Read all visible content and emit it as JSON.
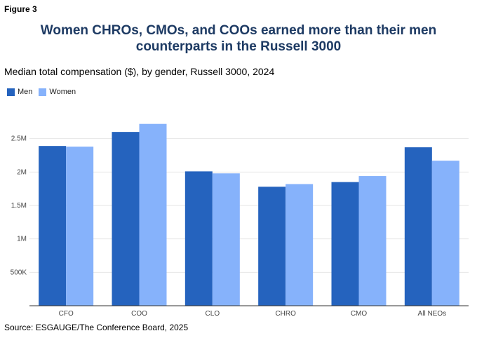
{
  "figure_label": "Figure 3",
  "title_line1": "Women CHROs, CMOs, and COOs earned more than their men",
  "title_line2": "counterparts in the Russell 3000",
  "subtitle": "Median total compensation ($), by gender, Russell 3000, 2024",
  "source": "Source: ESGAUGE/The Conference Board, 2025",
  "colors": {
    "men": "#2563be",
    "women": "#86b2fb",
    "grid": "#e6e6e6",
    "axis": "#333333"
  },
  "chart_data": {
    "type": "bar",
    "categories": [
      "CFO",
      "COO",
      "CLO",
      "CHRO",
      "CMO",
      "All NEOs"
    ],
    "series": [
      {
        "name": "Men",
        "values": [
          2390000,
          2600000,
          2010000,
          1780000,
          1850000,
          2370000
        ]
      },
      {
        "name": "Women",
        "values": [
          2380000,
          2720000,
          1980000,
          1820000,
          1940000,
          2170000
        ]
      }
    ],
    "yticks": [
      {
        "value": 500000,
        "label": "500K"
      },
      {
        "value": 1000000,
        "label": "1M"
      },
      {
        "value": 1500000,
        "label": "1.5M"
      },
      {
        "value": 2000000,
        "label": "2M"
      },
      {
        "value": 2500000,
        "label": "2.5M"
      }
    ],
    "ylim": [
      0,
      3000000
    ],
    "legend_position": "top-left",
    "grid": true
  }
}
